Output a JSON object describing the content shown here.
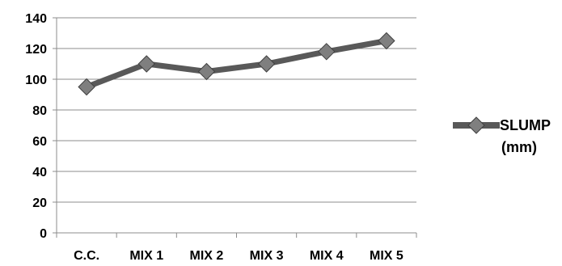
{
  "chart_data": {
    "type": "line",
    "categories": [
      "C.C.",
      "MIX 1",
      "MIX 2",
      "MIX 3",
      "MIX 4",
      "MIX 5"
    ],
    "series": [
      {
        "name": "SLUMP (mm)",
        "legend_lines": [
          "SLUMP",
          "(mm)"
        ],
        "values": [
          95,
          110,
          105,
          110,
          118,
          125
        ]
      }
    ],
    "title": "",
    "xlabel": "",
    "ylabel": "",
    "ylim": [
      0,
      140
    ],
    "yticks": [
      "0",
      "20",
      "40",
      "60",
      "80",
      "100",
      "120",
      "140"
    ],
    "grid": true,
    "legend_position": "right",
    "colors": {
      "line": "#595959",
      "marker": "#7f7f7f",
      "marker_stroke": "#404040",
      "grid": "#8c8c8c"
    }
  }
}
